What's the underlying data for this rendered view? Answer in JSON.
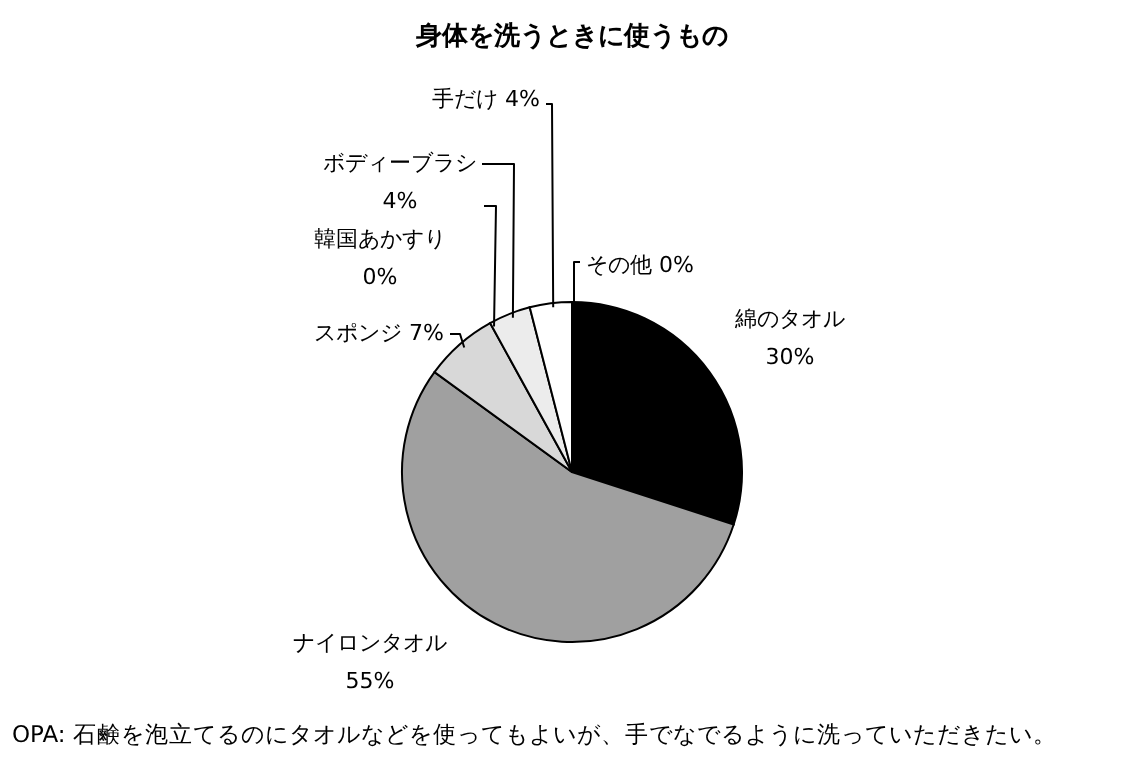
{
  "chart_data": {
    "type": "pie",
    "title": "身体を洗うときに使うもの",
    "categories": [
      "綿のタオル",
      "ナイロンタオル",
      "スポンジ",
      "韓国あかすり",
      "ボディーブラシ",
      "手だけ",
      "その他"
    ],
    "values": [
      30,
      55,
      7,
      0,
      4,
      4,
      0
    ],
    "value_labels": [
      "30%",
      "55%",
      "7%",
      "0%",
      "4%",
      "4%",
      "0%"
    ],
    "colors": [
      "#000000",
      "#a0a0a0",
      "#d8d8d8",
      "#c8c8c8",
      "#ececec",
      "#ffffff",
      "#ffffff"
    ],
    "annotations": [
      "OPA: 石鹸を泡立てるのにタオルなどを使ってもよいが、手でなでるように洗っていただきたい。"
    ]
  }
}
